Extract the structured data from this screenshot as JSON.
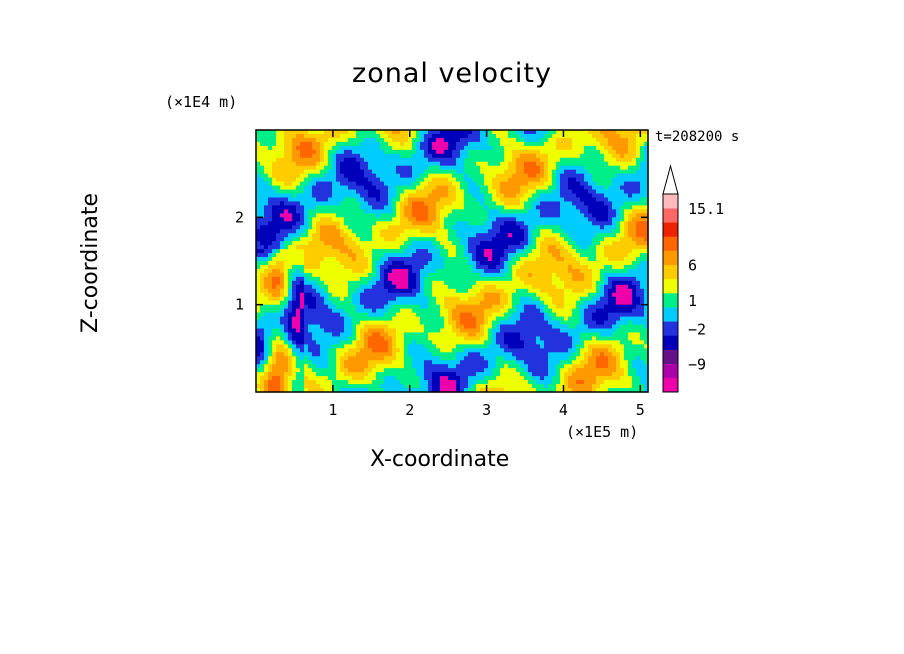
{
  "chart_data": {
    "type": "heatmap",
    "title": "zonal velocity",
    "xlabel": "X-coordinate",
    "ylabel": "Z-coordinate",
    "x_unit_label": "(×1E5 m)",
    "y_unit_label": "(×1E4 m)",
    "time_label": "t=208200 s",
    "x_ticks": [
      "1",
      "2",
      "3",
      "4",
      "5"
    ],
    "y_ticks": [
      "1",
      "2"
    ],
    "xlim": [
      0,
      5.1
    ],
    "ylim": [
      0,
      3.0
    ],
    "colorbar": {
      "labels": [
        "15.1",
        "6",
        "1",
        "-2",
        "-9"
      ],
      "colors": [
        "#ee00aa",
        "#aa00aa",
        "#661188",
        "#0000bb",
        "#2233dd",
        "#00ccff",
        "#00ee88",
        "#eeff00",
        "#ffcc00",
        "#ff9900",
        "#ff6600",
        "#ee2200",
        "#ff6666",
        "#ffbbbb"
      ],
      "extend": "max"
    },
    "colormap": [
      "#ee00aa",
      "#0000bb",
      "#2233dd",
      "#00ccff",
      "#00ee88",
      "#eeff00",
      "#ffcc00",
      "#ff9900",
      "#ff6600"
    ]
  }
}
